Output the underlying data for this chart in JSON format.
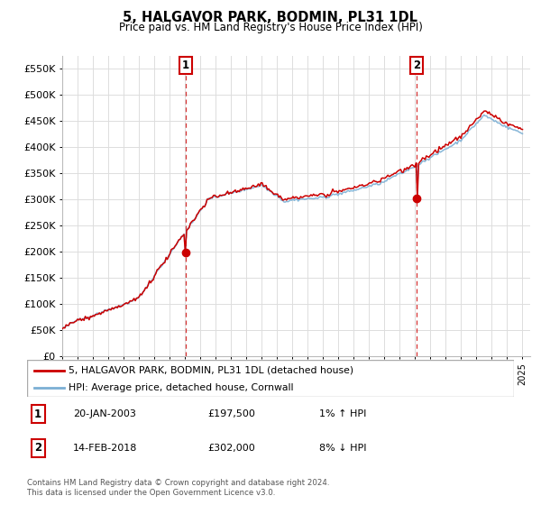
{
  "title": "5, HALGAVOR PARK, BODMIN, PL31 1DL",
  "subtitle": "Price paid vs. HM Land Registry's House Price Index (HPI)",
  "ylabel_ticks": [
    "£0",
    "£50K",
    "£100K",
    "£150K",
    "£200K",
    "£250K",
    "£300K",
    "£350K",
    "£400K",
    "£450K",
    "£500K",
    "£550K"
  ],
  "ytick_values": [
    0,
    50000,
    100000,
    150000,
    200000,
    250000,
    300000,
    350000,
    400000,
    450000,
    500000,
    550000
  ],
  "ylim": [
    0,
    575000
  ],
  "xlim_start": 1995.0,
  "xlim_end": 2025.5,
  "sale1_x": 2003.05,
  "sale1_y": 197500,
  "sale1_label": "1",
  "sale1_date": "20-JAN-2003",
  "sale1_price": "£197,500",
  "sale1_hpi": "1% ↑ HPI",
  "sale2_x": 2018.12,
  "sale2_y": 302000,
  "sale2_label": "2",
  "sale2_date": "14-FEB-2018",
  "sale2_price": "£302,000",
  "sale2_hpi": "8% ↓ HPI",
  "legend_line1": "5, HALGAVOR PARK, BODMIN, PL31 1DL (detached house)",
  "legend_line2": "HPI: Average price, detached house, Cornwall",
  "footer1": "Contains HM Land Registry data © Crown copyright and database right 2024.",
  "footer2": "This data is licensed under the Open Government Licence v3.0.",
  "line_color_red": "#cc0000",
  "line_color_blue": "#7bafd4",
  "background_color": "#ffffff",
  "grid_color": "#dddddd",
  "dashed_color": "#cc0000"
}
